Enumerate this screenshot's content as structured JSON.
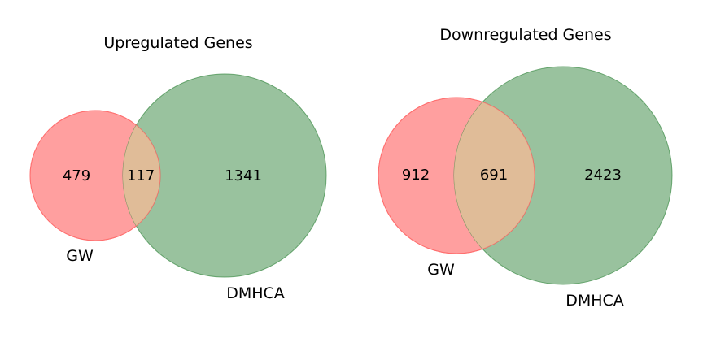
{
  "diagrams": [
    {
      "title": "Upregulated Genes",
      "set_a": {
        "label": "GW",
        "only": "479",
        "color": "#ff6b6b"
      },
      "set_b": {
        "label": "DMHCA",
        "only": "1341",
        "color": "#3b8a45"
      },
      "overlap": {
        "value": "117",
        "color": "#e0bc98"
      }
    },
    {
      "title": "Downregulated Genes",
      "set_a": {
        "label": "GW",
        "only": "912",
        "color": "#ff6b6b"
      },
      "set_b": {
        "label": "DMHCA",
        "only": "2423",
        "color": "#3b8a45"
      },
      "overlap": {
        "value": "691",
        "color": "#e0bc98"
      }
    }
  ]
}
